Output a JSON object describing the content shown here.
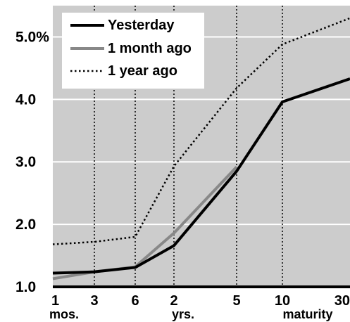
{
  "chart_data": {
    "type": "line",
    "title": "",
    "xlabel": "",
    "ylabel": "",
    "categories": [
      "1",
      "3",
      "6",
      "2",
      "5",
      "10",
      "30"
    ],
    "x_sublabels": [
      "mos.",
      "",
      "",
      "yrs.",
      "",
      "maturity",
      ""
    ],
    "y_ticks": [
      "1.0",
      "2.0",
      "3.0",
      "4.0",
      "5.0%"
    ],
    "ylim": [
      1.0,
      5.5
    ],
    "grid": true,
    "legend_position": "top-left",
    "series": [
      {
        "name": "Yesterday",
        "values": [
          1.22,
          1.24,
          1.31,
          1.66,
          2.85,
          3.96,
          4.33
        ],
        "color": "#000000",
        "style": "solid"
      },
      {
        "name": "1 month ago",
        "values": [
          1.13,
          1.24,
          1.32,
          1.86,
          2.92,
          null,
          null
        ],
        "color": "#888888",
        "style": "solid"
      },
      {
        "name": "1 year ago",
        "values": [
          1.68,
          1.72,
          1.8,
          2.93,
          4.18,
          4.88,
          5.3
        ],
        "color": "#000000",
        "style": "dotted"
      }
    ]
  }
}
